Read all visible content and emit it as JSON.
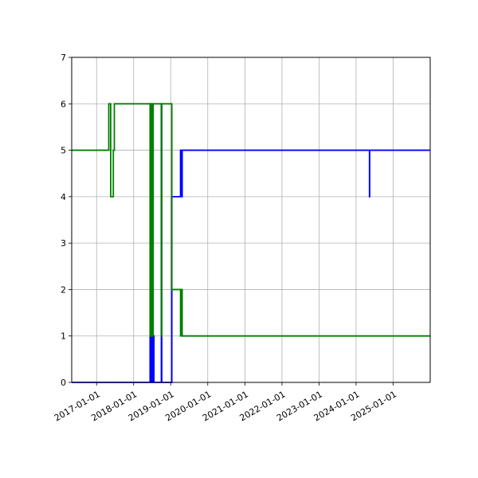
{
  "chart_data": {
    "type": "line",
    "title": "",
    "xlabel": "",
    "ylabel": "",
    "grid": true,
    "ylim": [
      0,
      7
    ],
    "xlim": [
      "2016-05-01",
      "2025-12-31"
    ],
    "x_tick_labels": [
      "2017-01-01",
      "2018-01-01",
      "2019-01-01",
      "2020-01-01",
      "2021-01-01",
      "2022-01-01",
      "2023-01-01",
      "2024-01-01",
      "2025-01-01"
    ],
    "y_tick_labels": [
      "0",
      "1",
      "2",
      "3",
      "4",
      "5",
      "6",
      "7"
    ],
    "series": [
      {
        "color": "#0000ff",
        "step": true,
        "points": [
          [
            "2016-05-01",
            0
          ],
          [
            "2018-06-10",
            0
          ],
          [
            "2018-06-12",
            6
          ],
          [
            "2018-06-14",
            0
          ],
          [
            "2018-06-17",
            6
          ],
          [
            "2018-06-20",
            0
          ],
          [
            "2018-06-24",
            6
          ],
          [
            "2018-06-27",
            0
          ],
          [
            "2018-07-01",
            6
          ],
          [
            "2018-07-04",
            0
          ],
          [
            "2018-07-08",
            6
          ],
          [
            "2018-07-12",
            0
          ],
          [
            "2018-07-16",
            1
          ],
          [
            "2018-07-20",
            0
          ],
          [
            "2018-10-01",
            6
          ],
          [
            "2018-10-05",
            0
          ],
          [
            "2019-01-12",
            4
          ],
          [
            "2019-04-05",
            4
          ],
          [
            "2019-04-08",
            5
          ],
          [
            "2019-04-12",
            4
          ],
          [
            "2019-04-16",
            5
          ],
          [
            "2019-04-20",
            4
          ],
          [
            "2019-04-24",
            5
          ],
          [
            "2024-05-10",
            5
          ],
          [
            "2024-05-12",
            4
          ],
          [
            "2024-05-14",
            5
          ],
          [
            "2025-12-31",
            5
          ]
        ]
      },
      {
        "color": "#008000",
        "step": true,
        "points": [
          [
            "2016-05-01",
            5
          ],
          [
            "2017-05-01",
            6
          ],
          [
            "2017-05-20",
            4
          ],
          [
            "2017-06-15",
            5
          ],
          [
            "2017-06-25",
            6
          ],
          [
            "2018-06-10",
            6
          ],
          [
            "2018-06-12",
            1
          ],
          [
            "2018-06-14",
            6
          ],
          [
            "2018-06-17",
            1
          ],
          [
            "2018-06-20",
            6
          ],
          [
            "2018-06-24",
            1
          ],
          [
            "2018-06-27",
            6
          ],
          [
            "2018-07-01",
            1
          ],
          [
            "2018-07-04",
            6
          ],
          [
            "2018-07-08",
            1
          ],
          [
            "2018-07-12",
            6
          ],
          [
            "2018-10-01",
            1
          ],
          [
            "2018-10-05",
            6
          ],
          [
            "2019-01-12",
            2
          ],
          [
            "2019-04-05",
            2
          ],
          [
            "2019-04-08",
            1
          ],
          [
            "2019-04-12",
            2
          ],
          [
            "2019-04-16",
            1
          ],
          [
            "2019-04-20",
            2
          ],
          [
            "2019-04-24",
            1
          ],
          [
            "2025-12-31",
            1
          ]
        ]
      }
    ]
  }
}
